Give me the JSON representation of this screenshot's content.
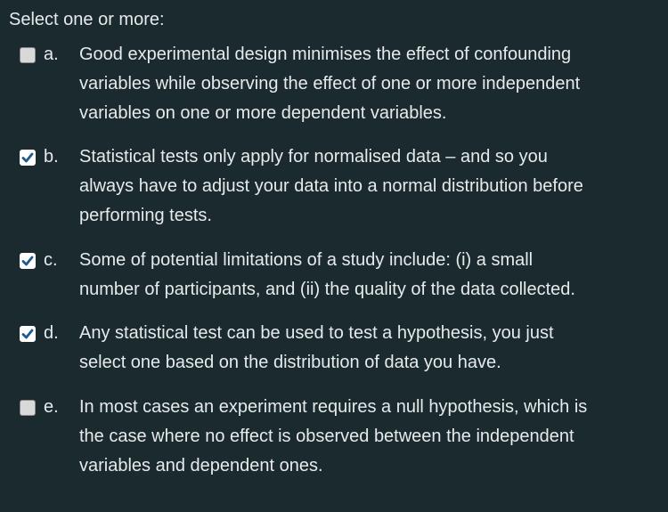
{
  "prompt": "Select one or more:",
  "options": [
    {
      "letter": "a.",
      "checked": false,
      "lines": [
        "Good experimental design minimises the effect of confounding",
        "variables while observing the effect of one or more independent",
        "variables on one or more dependent variables."
      ]
    },
    {
      "letter": "b.",
      "checked": true,
      "lines": [
        "Statistical tests only apply for normalised data – and so you",
        "always have to adjust your data into a normal distribution before",
        "performing tests."
      ]
    },
    {
      "letter": "c.",
      "checked": true,
      "lines": [
        "Some of potential limitations of a study include: (i)  a small",
        "number of participants, and (ii) the quality of the data collected."
      ]
    },
    {
      "letter": "d.",
      "checked": true,
      "lines": [
        "Any statistical test can be used to test a hypothesis, you just",
        "select one based on the distribution of data you have."
      ]
    },
    {
      "letter": "e.",
      "checked": false,
      "lines": [
        "In most cases an experiment requires a null hypothesis, which is",
        "the case where no effect is observed between the independent",
        "variables and dependent ones."
      ]
    }
  ],
  "colors": {
    "background": "#1b2a2f",
    "text": "#e6eaeb",
    "check_accent": "#1f5a8f"
  }
}
